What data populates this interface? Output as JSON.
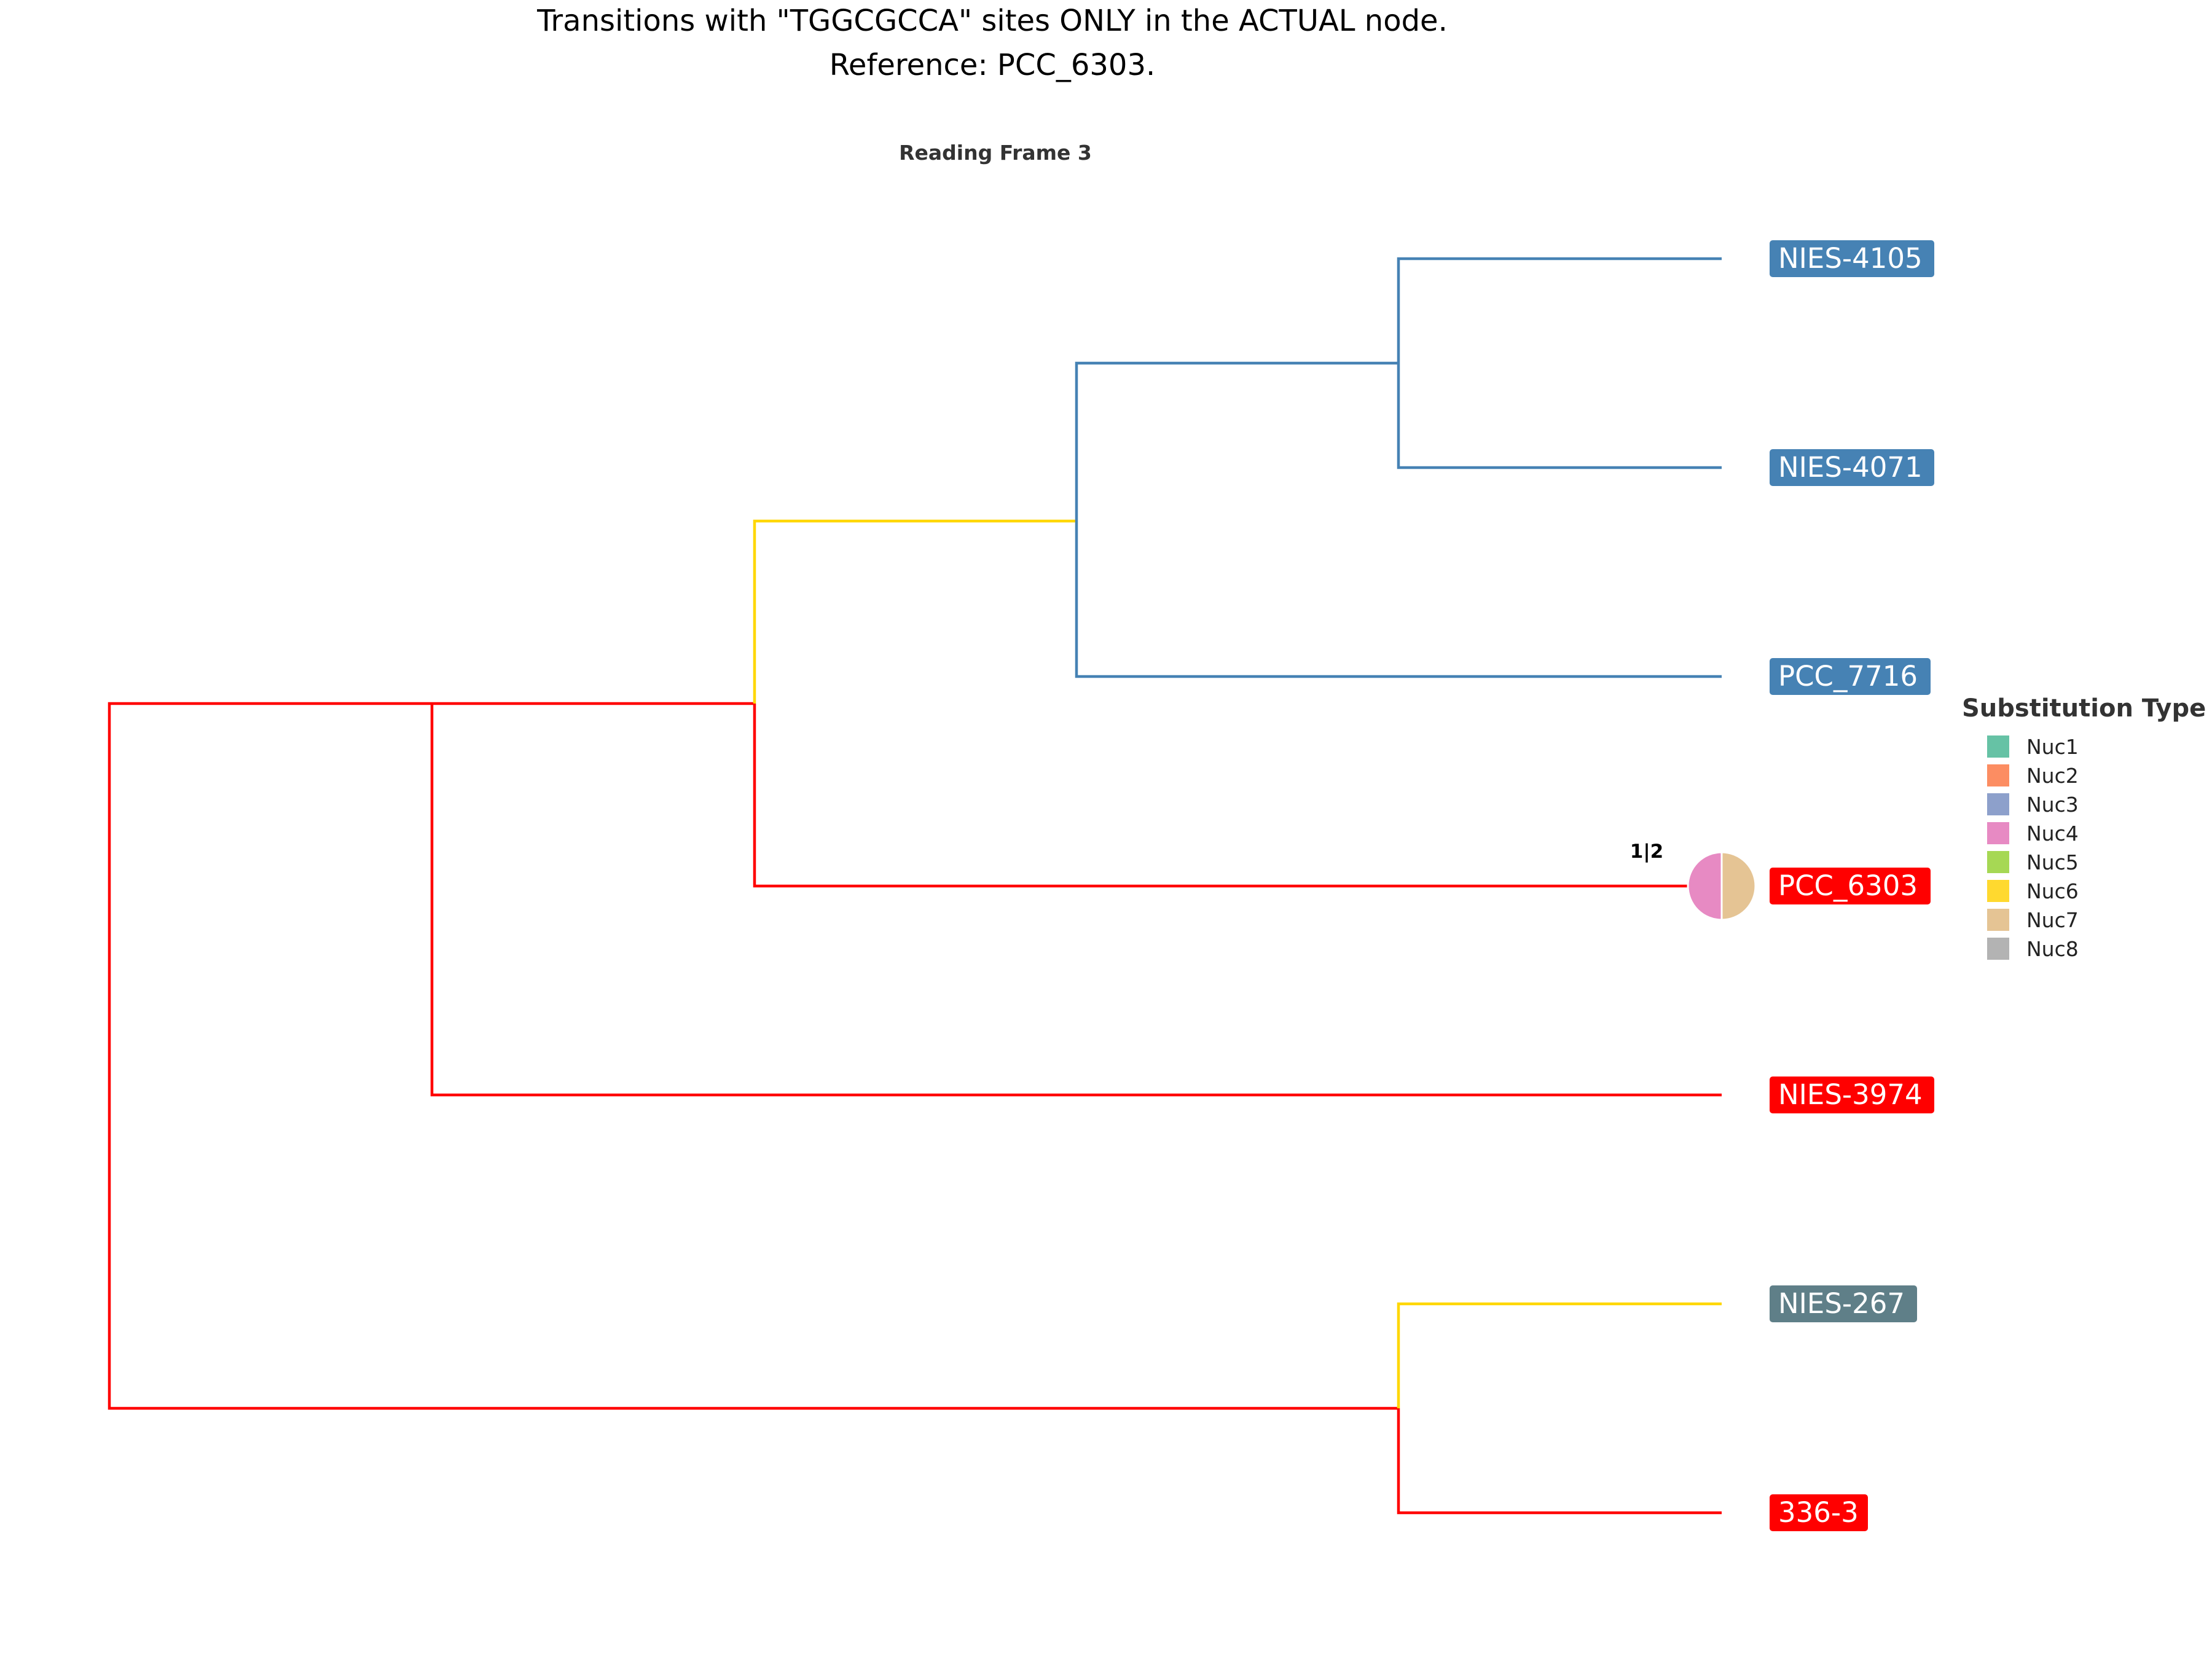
{
  "title": {
    "line1": "Transitions with \"TGGCGCCA\" sites ONLY in the ACTUAL node.",
    "line2": "Reference: PCC_6303."
  },
  "subtitle": "Reading Frame 3",
  "colors": {
    "red": "#ff0000",
    "blue": "#4682b4",
    "yellow": "#ffd700",
    "gray": "#5f7f88"
  },
  "tips": [
    {
      "id": "nies4105",
      "label": "NIES-4105",
      "color": "#4682b4"
    },
    {
      "id": "nies4071",
      "label": "NIES-4071",
      "color": "#4682b4"
    },
    {
      "id": "pcc7716",
      "label": "PCC_7716",
      "color": "#4682b4"
    },
    {
      "id": "pcc6303",
      "label": "PCC_6303",
      "color": "#ff0000"
    },
    {
      "id": "nies3974",
      "label": "NIES-3974",
      "color": "#ff0000"
    },
    {
      "id": "nies267",
      "label": "NIES-267",
      "color": "#5f7f88"
    },
    {
      "id": "s3363",
      "label": "336-3",
      "color": "#ff0000"
    }
  ],
  "branch_colors": {
    "root_to_c5": "#ff0000",
    "root_to_c3": "#ff0000",
    "c5_to_nies3974": "#ff0000",
    "c5_to_c4": "#ff0000",
    "c4_to_c2": "#ffd700",
    "c4_to_pcc6303": "#ff0000",
    "c2_to_c1": "#4682b4",
    "c2_to_pcc7716": "#4682b4",
    "c1_to_nies4105": "#4682b4",
    "c1_to_nies4071": "#4682b4",
    "c3_to_nies267": "#ffd700",
    "c3_to_3363": "#ff0000"
  },
  "pie": {
    "node": "PCC_6303",
    "label": "1|2",
    "slices": [
      {
        "type": "Nuc4",
        "value": 1,
        "color": "#e78ac3"
      },
      {
        "type": "Nuc7",
        "value": 1,
        "color": "#e5c494"
      }
    ]
  },
  "legend": {
    "title": "Substitution Type",
    "items": [
      {
        "label": "Nuc1",
        "color": "#66c2a5"
      },
      {
        "label": "Nuc2",
        "color": "#fc8d62"
      },
      {
        "label": "Nuc3",
        "color": "#8da0cb"
      },
      {
        "label": "Nuc4",
        "color": "#e78ac3"
      },
      {
        "label": "Nuc5",
        "color": "#a6d854"
      },
      {
        "label": "Nuc6",
        "color": "#ffd92f"
      },
      {
        "label": "Nuc7",
        "color": "#e5c494"
      },
      {
        "label": "Nuc8",
        "color": "#b3b3b3"
      }
    ]
  }
}
